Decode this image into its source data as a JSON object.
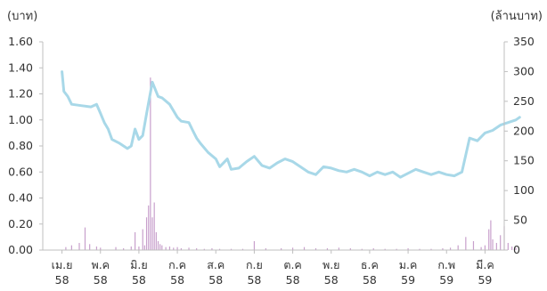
{
  "chart_data": {
    "type": "line",
    "y_unit_left": "(บาท)",
    "y_unit_right": "(ล้านบาท)",
    "ylim_left": [
      0,
      1.6
    ],
    "ylim_right": [
      0,
      350
    ],
    "yticks_left": [
      "1.60",
      "1.40",
      "1.20",
      "1.00",
      "0.80",
      "0.60",
      "0.40",
      "0.20",
      "0.00"
    ],
    "yticks_right": [
      "350",
      "300",
      "250",
      "200",
      "150",
      "100",
      "50",
      "0"
    ],
    "x_categories": [
      {
        "month": "เม.ย",
        "year": "58"
      },
      {
        "month": "พ.ค",
        "year": "58"
      },
      {
        "month": "มิ.ย",
        "year": "58"
      },
      {
        "month": "ก.ค",
        "year": "58"
      },
      {
        "month": "ส.ค",
        "year": "58"
      },
      {
        "month": "ก.ย",
        "year": "58"
      },
      {
        "month": "ต.ค",
        "year": "58"
      },
      {
        "month": "พ.ย",
        "year": "58"
      },
      {
        "month": "ธ.ค",
        "year": "58"
      },
      {
        "month": "ม.ค",
        "year": "59"
      },
      {
        "month": "ก.พ",
        "year": "59"
      },
      {
        "month": "มี.ค",
        "year": "59"
      }
    ],
    "grid": false,
    "legend": "none",
    "series": [
      {
        "kind": "line",
        "axis": "left",
        "color": "#a8d8e8",
        "x": [
          0,
          0.05,
          0.15,
          0.25,
          0.5,
          0.75,
          0.9,
          1.0,
          1.1,
          1.2,
          1.3,
          1.5,
          1.7,
          1.8,
          1.9,
          2.0,
          2.1,
          2.2,
          2.35,
          2.5,
          2.6,
          2.8,
          3.0,
          3.1,
          3.3,
          3.4,
          3.5,
          3.6,
          3.8,
          4.0,
          4.1,
          4.3,
          4.4,
          4.6,
          4.8,
          5.0,
          5.2,
          5.4,
          5.6,
          5.8,
          6.0,
          6.2,
          6.4,
          6.6,
          6.8,
          7.0,
          7.2,
          7.4,
          7.6,
          7.8,
          8.0,
          8.2,
          8.4,
          8.6,
          8.8,
          9.0,
          9.2,
          9.4,
          9.6,
          9.8,
          10.0,
          10.2,
          10.4,
          10.6,
          10.8,
          11.0,
          11.2,
          11.4,
          11.6,
          11.8,
          11.9
        ],
        "y": [
          1.37,
          1.22,
          1.18,
          1.12,
          1.11,
          1.1,
          1.12,
          1.05,
          0.98,
          0.93,
          0.85,
          0.82,
          0.78,
          0.8,
          0.93,
          0.85,
          0.88,
          1.05,
          1.29,
          1.18,
          1.17,
          1.12,
          1.02,
          0.99,
          0.98,
          0.92,
          0.86,
          0.82,
          0.75,
          0.7,
          0.64,
          0.7,
          0.62,
          0.63,
          0.68,
          0.72,
          0.65,
          0.63,
          0.67,
          0.7,
          0.68,
          0.64,
          0.6,
          0.58,
          0.64,
          0.63,
          0.61,
          0.6,
          0.62,
          0.6,
          0.57,
          0.6,
          0.58,
          0.6,
          0.56,
          0.59,
          0.62,
          0.6,
          0.58,
          0.6,
          0.58,
          0.57,
          0.6,
          0.86,
          0.84,
          0.9,
          0.92,
          0.96,
          0.98,
          1.0,
          1.02
        ]
      },
      {
        "kind": "bar",
        "axis": "right",
        "color": "#c8a0cc",
        "x": [
          0.1,
          0.25,
          0.45,
          0.6,
          0.72,
          0.9,
          1.0,
          1.4,
          1.6,
          1.8,
          1.9,
          2.0,
          2.1,
          2.15,
          2.2,
          2.25,
          2.3,
          2.35,
          2.4,
          2.45,
          2.5,
          2.55,
          2.6,
          2.7,
          2.8,
          2.9,
          3.0,
          3.1,
          3.3,
          3.5,
          3.7,
          3.9,
          4.1,
          4.4,
          4.7,
          5.0,
          5.3,
          5.7,
          6.0,
          6.3,
          6.6,
          6.9,
          7.2,
          7.5,
          7.8,
          8.1,
          8.4,
          8.7,
          9.0,
          9.3,
          9.6,
          9.9,
          10.1,
          10.3,
          10.5,
          10.7,
          10.9,
          11.0,
          11.1,
          11.15,
          11.2,
          11.3,
          11.4,
          11.5,
          11.6,
          11.7,
          11.8
        ],
        "y": [
          5,
          8,
          12,
          38,
          10,
          6,
          4,
          5,
          3,
          6,
          30,
          6,
          35,
          8,
          55,
          75,
          290,
          55,
          80,
          30,
          15,
          10,
          8,
          5,
          6,
          4,
          5,
          3,
          4,
          3,
          2,
          3,
          2,
          2,
          2,
          15,
          3,
          3,
          4,
          5,
          3,
          3,
          4,
          3,
          2,
          3,
          2,
          2,
          3,
          2,
          2,
          3,
          4,
          8,
          22,
          15,
          5,
          8,
          35,
          50,
          18,
          12,
          25,
          40,
          12,
          6,
          4
        ]
      }
    ]
  }
}
